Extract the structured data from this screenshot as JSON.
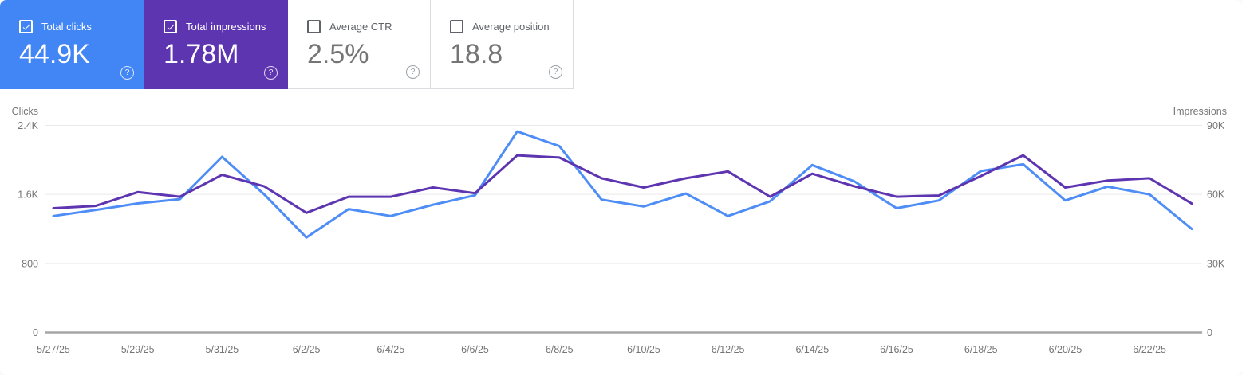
{
  "cards": [
    {
      "name": "total-clicks",
      "label": "Total clicks",
      "value": "44.9K",
      "checked": true,
      "bg": "#4285F4"
    },
    {
      "name": "total-impressions",
      "label": "Total impressions",
      "value": "1.78M",
      "checked": true,
      "bg": "#5E35B1"
    },
    {
      "name": "average-ctr",
      "label": "Average CTR",
      "value": "2.5%",
      "checked": false,
      "bg": "#FFFFFF"
    },
    {
      "name": "average-position",
      "label": "Average position",
      "value": "18.8",
      "checked": false,
      "bg": "#FFFFFF"
    }
  ],
  "icons": {
    "help": "?",
    "check": "checkmark"
  },
  "chart_data": {
    "type": "line",
    "x": [
      "5/27/25",
      "5/28/25",
      "5/29/25",
      "5/30/25",
      "5/31/25",
      "6/1/25",
      "6/2/25",
      "6/3/25",
      "6/4/25",
      "6/5/25",
      "6/6/25",
      "6/7/25",
      "6/8/25",
      "6/9/25",
      "6/10/25",
      "6/11/25",
      "6/12/25",
      "6/13/25",
      "6/14/25",
      "6/15/25",
      "6/16/25",
      "6/17/25",
      "6/18/25",
      "6/19/25",
      "6/20/25",
      "6/21/25",
      "6/22/25",
      "6/23/25"
    ],
    "x_tick_labels": [
      "5/27/25",
      "5/29/25",
      "5/31/25",
      "6/2/25",
      "6/4/25",
      "6/6/25",
      "6/8/25",
      "6/10/25",
      "6/12/25",
      "6/14/25",
      "6/16/25",
      "6/18/25",
      "6/20/25",
      "6/22/25"
    ],
    "series": [
      {
        "name": "Clicks",
        "axis": "left",
        "color": "#4E8DF5",
        "values": [
          1350,
          1420,
          1495,
          1545,
          2035,
          1600,
          1100,
          1430,
          1350,
          1480,
          1590,
          2330,
          2160,
          1540,
          1460,
          1610,
          1350,
          1520,
          1940,
          1750,
          1440,
          1530,
          1870,
          1950,
          1530,
          1690,
          1600,
          1200
        ]
      },
      {
        "name": "Impressions",
        "axis": "right",
        "color": "#5E35B1",
        "values": [
          54000,
          55000,
          61000,
          59000,
          68500,
          63500,
          52000,
          59000,
          59000,
          63000,
          60500,
          77000,
          76000,
          67000,
          63000,
          67000,
          70000,
          59000,
          69000,
          63500,
          59000,
          59500,
          68000,
          77000,
          63000,
          66000,
          67000,
          56000
        ]
      }
    ],
    "left_axis": {
      "title": "Clicks",
      "range": [
        0,
        2400
      ],
      "tick_values": [
        2400,
        1600,
        800,
        0
      ],
      "tick_labels": [
        "2.4K",
        "1.6K",
        "800",
        "0"
      ]
    },
    "right_axis": {
      "title": "Impressions",
      "range": [
        0,
        90000
      ],
      "tick_values": [
        90000,
        60000,
        30000,
        0
      ],
      "tick_labels": [
        "90K",
        "60K",
        "30K",
        "0"
      ]
    },
    "grid": true,
    "legend": "none"
  },
  "colors": {
    "clicks_accent": "#4285F4",
    "impressions_accent": "#5E35B1",
    "grid_line": "#E9E9E9",
    "axis_line": "#A5A5A5",
    "tick_text": "#757575",
    "card_border": "#DADCE0"
  }
}
